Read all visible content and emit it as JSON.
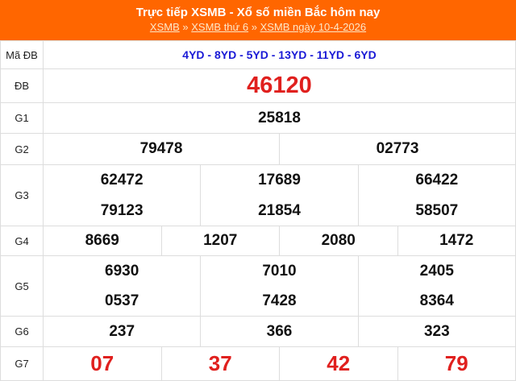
{
  "header": {
    "title": "Trực tiếp XSMB - Xổ số miền Bắc hôm nay",
    "breadcrumb": [
      "XSMB",
      "XSMB thứ 6",
      "XSMB ngày 10-4-2026"
    ],
    "sep": "»"
  },
  "labels": {
    "ma": "Mã ĐB",
    "db": "ĐB",
    "g1": "G1",
    "g2": "G2",
    "g3": "G3",
    "g4": "G4",
    "g5": "G5",
    "g6": "G6",
    "g7": "G7"
  },
  "ma_db": "4YD - 8YD - 5YD - 13YD - 11YD - 6YD",
  "db": "46120",
  "g1": "25818",
  "g2": [
    "79478",
    "02773"
  ],
  "g3": [
    [
      "62472",
      "17689",
      "66422"
    ],
    [
      "79123",
      "21854",
      "58507"
    ]
  ],
  "g4": [
    "8669",
    "1207",
    "2080",
    "1472"
  ],
  "g5": [
    [
      "6930",
      "7010",
      "2405"
    ],
    [
      "0537",
      "7428",
      "8364"
    ]
  ],
  "g6": [
    "237",
    "366",
    "323"
  ],
  "g7": [
    "07",
    "37",
    "42",
    "79"
  ],
  "colors": {
    "header": "#ff6600",
    "special": "#e0201e",
    "code": "#1a1ad6"
  }
}
